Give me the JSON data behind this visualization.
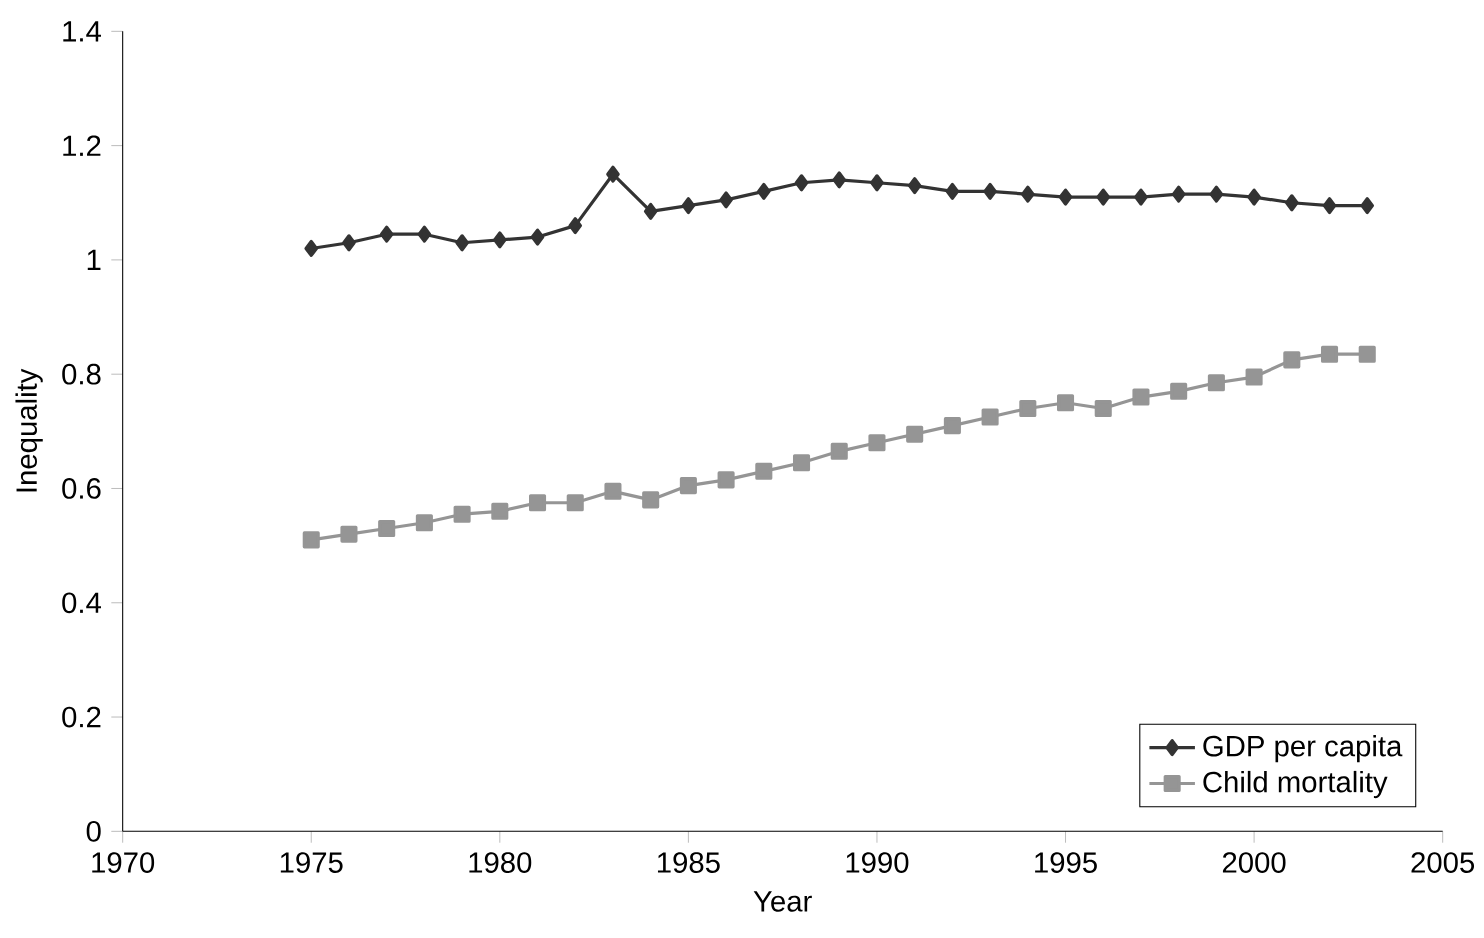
{
  "chart_data": {
    "type": "line",
    "xlabel": "Year",
    "ylabel": "Inequality",
    "x": [
      1975,
      1976,
      1977,
      1978,
      1979,
      1980,
      1981,
      1982,
      1983,
      1984,
      1985,
      1986,
      1987,
      1988,
      1989,
      1990,
      1991,
      1992,
      1993,
      1994,
      1995,
      1996,
      1997,
      1998,
      1999,
      2000,
      2001,
      2002,
      2003
    ],
    "series": [
      {
        "name": "GDP per capita",
        "color": "#333333",
        "marker": "diamond",
        "values": [
          1.02,
          1.03,
          1.045,
          1.045,
          1.03,
          1.035,
          1.04,
          1.06,
          1.15,
          1.085,
          1.095,
          1.105,
          1.12,
          1.135,
          1.14,
          1.135,
          1.13,
          1.12,
          1.12,
          1.115,
          1.11,
          1.11,
          1.11,
          1.115,
          1.115,
          1.11,
          1.1,
          1.095,
          1.095
        ]
      },
      {
        "name": "Child mortality",
        "color": "#959595",
        "marker": "square",
        "values": [
          0.51,
          0.52,
          0.53,
          0.54,
          0.555,
          0.56,
          0.575,
          0.575,
          0.595,
          0.58,
          0.605,
          0.615,
          0.63,
          0.645,
          0.665,
          0.68,
          0.695,
          0.71,
          0.725,
          0.74,
          0.75,
          0.74,
          0.76,
          0.77,
          0.785,
          0.795,
          0.825,
          0.835,
          0.835
        ]
      }
    ],
    "xlim": [
      1970,
      2005
    ],
    "xticks": [
      1970,
      1975,
      1980,
      1985,
      1990,
      1995,
      2000,
      2005
    ],
    "ylim": [
      0,
      1.4
    ],
    "yticks": [
      0,
      0.2,
      0.4,
      0.6,
      0.8,
      1,
      1.2,
      1.4
    ],
    "legend": "bottom right",
    "grid": false,
    "line_style": "solid"
  }
}
